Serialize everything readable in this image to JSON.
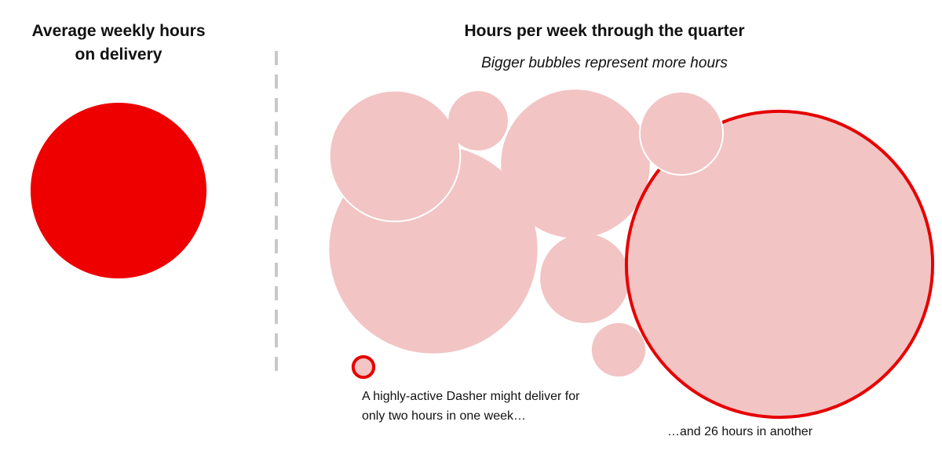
{
  "left": {
    "title": [
      "Average weekly hours",
      "on delivery"
    ],
    "hours": 15,
    "color": "#ee0000"
  },
  "right": {
    "title": "Hours per week through the quarter",
    "subtitle": "Bigger bubbles represent more hours",
    "bubble_color": "#f2c4c4",
    "highlight_color": "#e60000",
    "bubbles": [
      17.5,
      11,
      5,
      12.5,
      7.5,
      4.5,
      26,
      7,
      2
    ],
    "annotations": [
      [
        "A highly-active Dasher might deliver for",
        "only two hours in one week…"
      ],
      [
        "…and 26 hours in another"
      ]
    ]
  }
}
